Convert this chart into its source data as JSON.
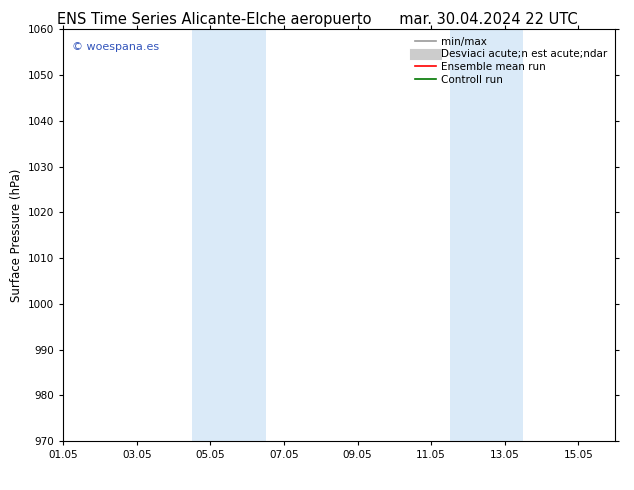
{
  "title_left": "ENS Time Series Alicante-Elche aeropuerto",
  "title_right": "mar. 30.04.2024 22 UTC",
  "ylabel": "Surface Pressure (hPa)",
  "ylim": [
    970,
    1060
  ],
  "yticks": [
    970,
    980,
    990,
    1000,
    1010,
    1020,
    1030,
    1040,
    1050,
    1060
  ],
  "xlim_start": 0,
  "xlim_end": 15,
  "xtick_positions": [
    0,
    2,
    4,
    6,
    8,
    10,
    12,
    14
  ],
  "xtick_labels": [
    "01.05",
    "03.05",
    "05.05",
    "07.05",
    "09.05",
    "11.05",
    "13.05",
    "15.05"
  ],
  "blue_bands": [
    {
      "xmin": 3.5,
      "xmax": 5.5
    },
    {
      "xmin": 10.5,
      "xmax": 12.5
    }
  ],
  "blue_band_color": "#daeaf8",
  "bg_color": "#ffffff",
  "watermark": "© woespana.es",
  "watermark_color": "#3355bb",
  "legend_entries": [
    {
      "label": "min/max",
      "color": "#999999",
      "lw": 1.2,
      "type": "line"
    },
    {
      "label": "Desviaci acute;n est acute;ndar",
      "color": "#cccccc",
      "lw": 8,
      "type": "line"
    },
    {
      "label": "Ensemble mean run",
      "color": "#ff0000",
      "lw": 1.2,
      "type": "line"
    },
    {
      "label": "Controll run",
      "color": "#007700",
      "lw": 1.2,
      "type": "line"
    }
  ],
  "title_fontsize": 10.5,
  "axis_fontsize": 8.5,
  "tick_fontsize": 7.5,
  "legend_fontsize": 7.5
}
